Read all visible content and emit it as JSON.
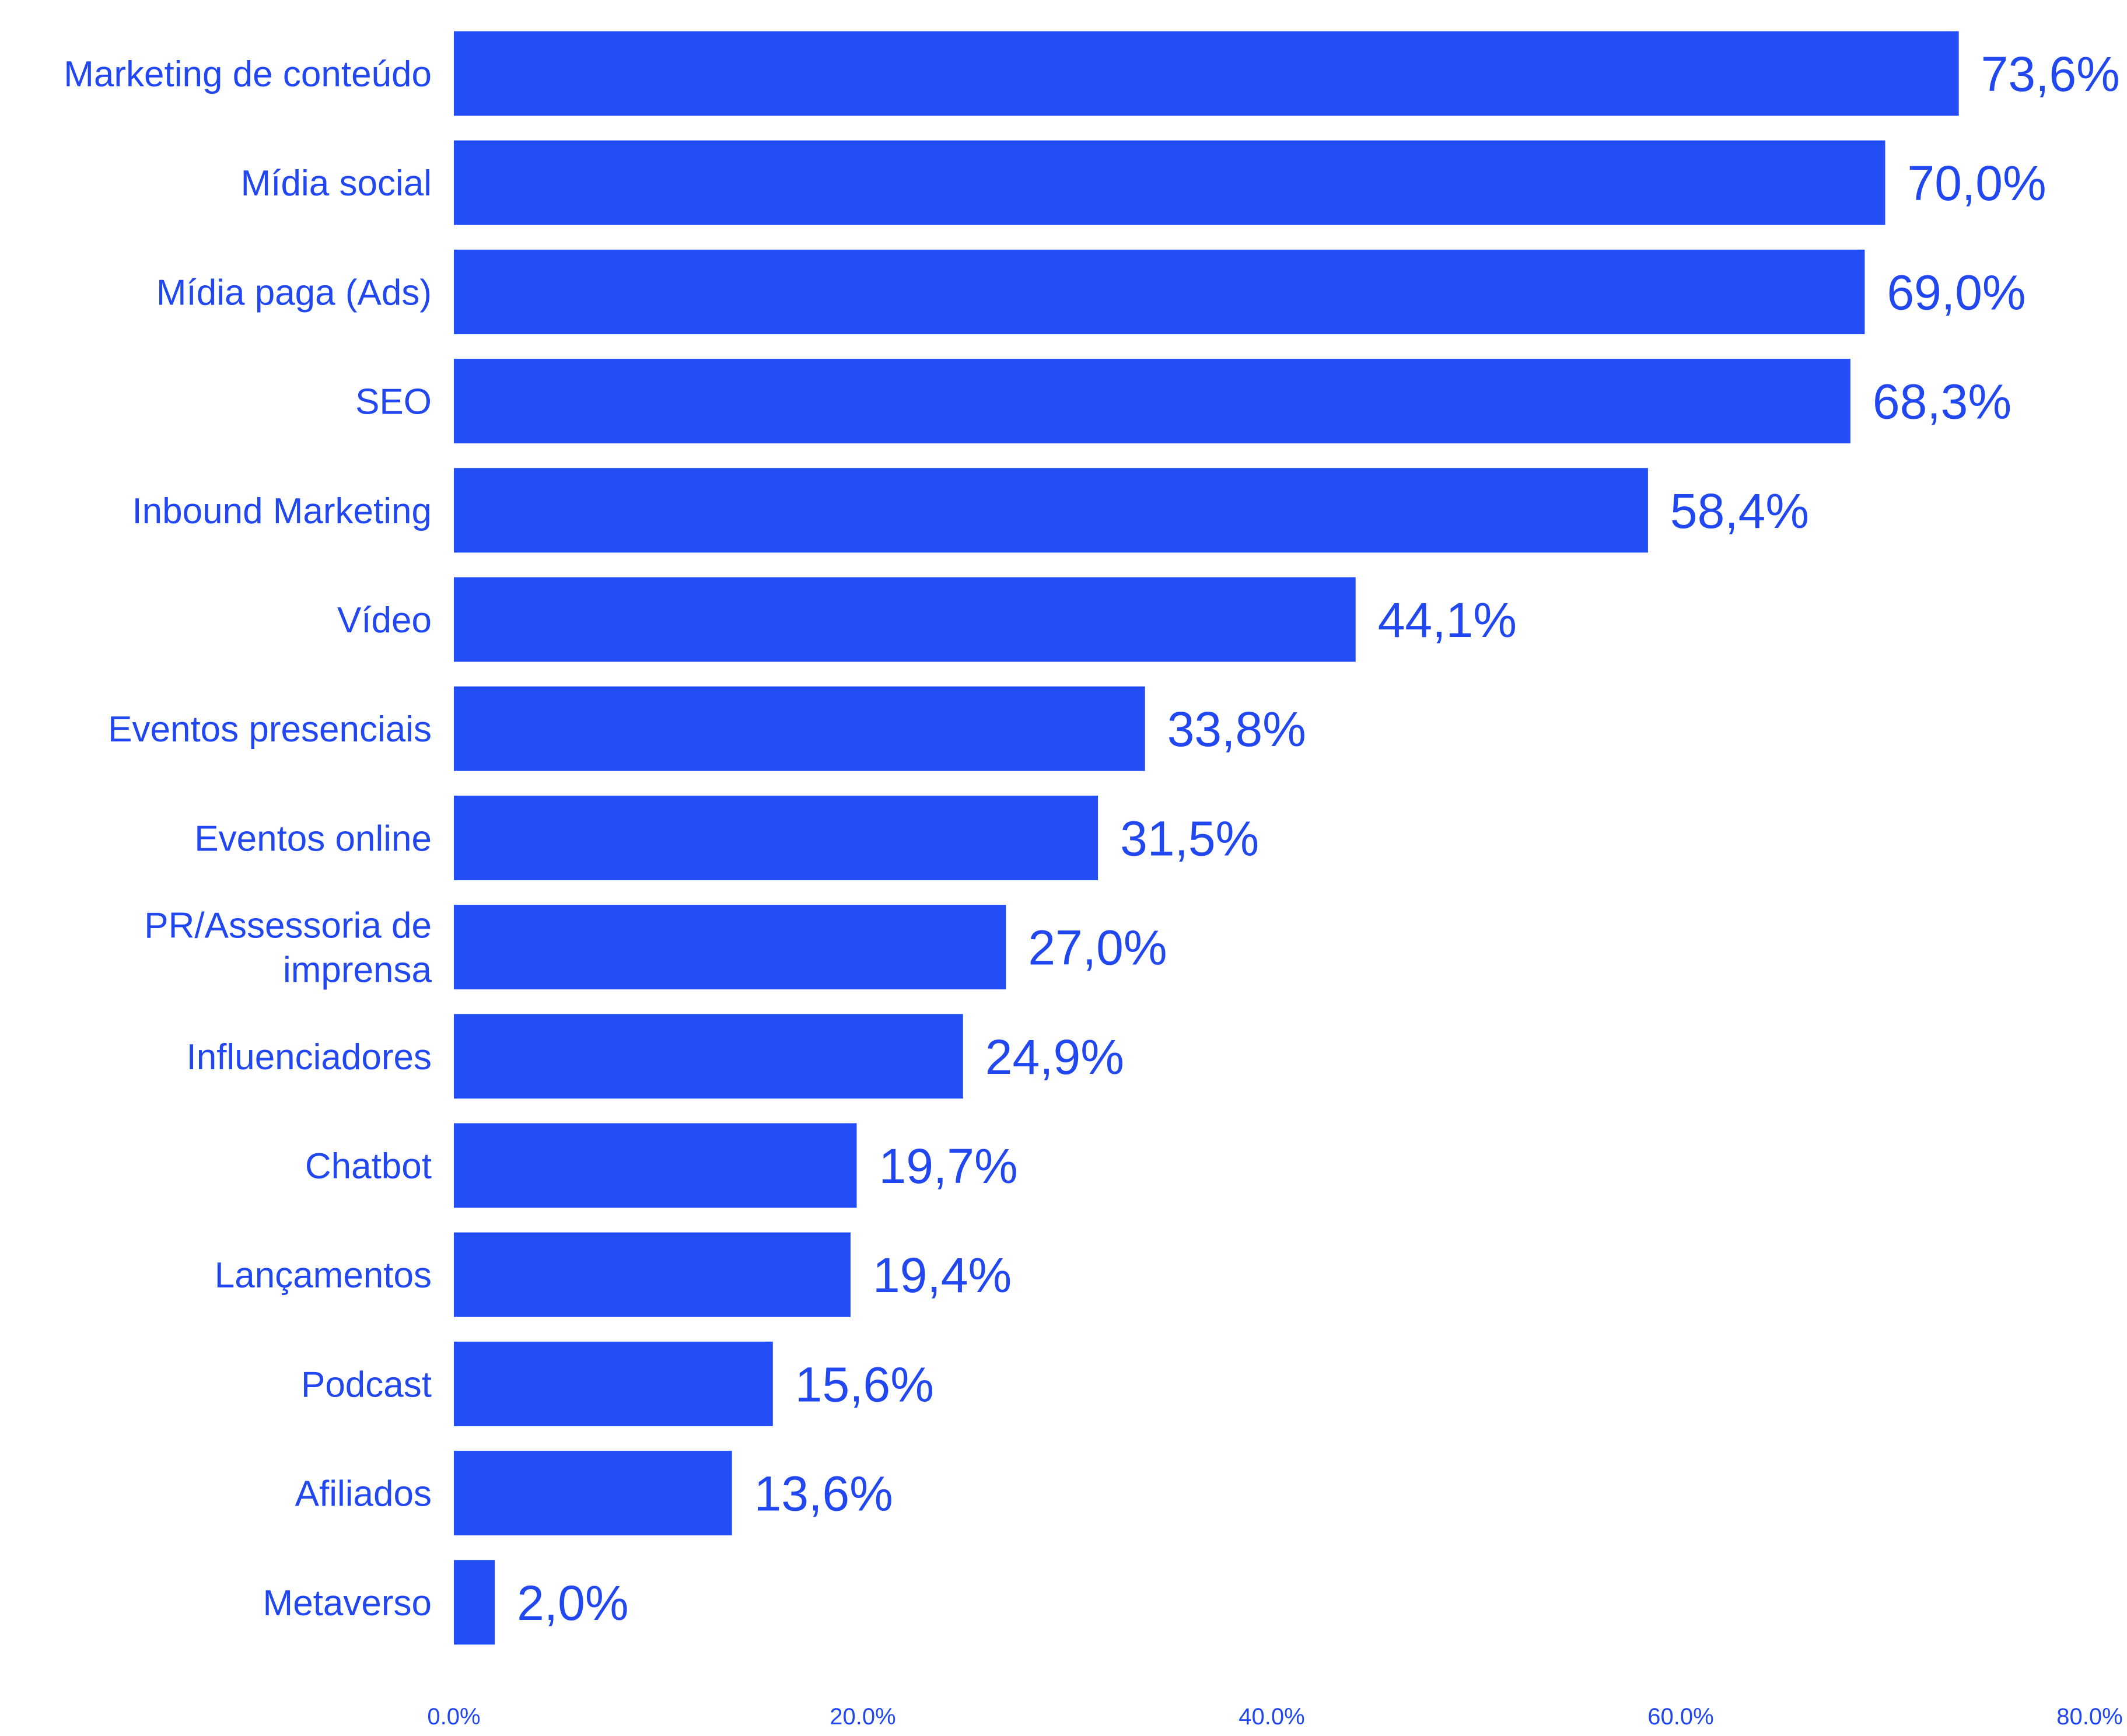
{
  "chart_data": {
    "type": "bar",
    "orientation": "horizontal",
    "categories": [
      "Marketing de conteúdo",
      "Mídia social",
      "Mídia paga (Ads)",
      "SEO",
      "Inbound Marketing",
      "Vídeo",
      "Eventos presenciais",
      "Eventos online",
      "PR/Assessoria de imprensa",
      "Influenciadores",
      "Chatbot",
      "Lançamentos",
      "Podcast",
      "Afiliados",
      "Metaverso"
    ],
    "values": [
      73.6,
      70.0,
      69.0,
      68.3,
      58.4,
      44.1,
      33.8,
      31.5,
      27.0,
      24.9,
      19.7,
      19.4,
      15.6,
      13.6,
      2.0
    ],
    "value_labels": [
      "73,6%",
      "70,0%",
      "69,0%",
      "68,3%",
      "58,4%",
      "44,1%",
      "33,8%",
      "31,5%",
      "27,0%",
      "24,9%",
      "19,7%",
      "19,4%",
      "15,6%",
      "13,6%",
      "2,0%"
    ],
    "xlim": [
      0,
      80
    ],
    "x_ticks": [
      0,
      20,
      40,
      60,
      80
    ],
    "x_tick_labels": [
      "0.0%",
      "20.0%",
      "40.0%",
      "60.0%",
      "80.0%"
    ],
    "grid": false,
    "legend": "none",
    "title": "",
    "xlabel": "",
    "ylabel": "",
    "colors": {
      "bar": "#244ef5",
      "text": "#2147f0"
    }
  }
}
